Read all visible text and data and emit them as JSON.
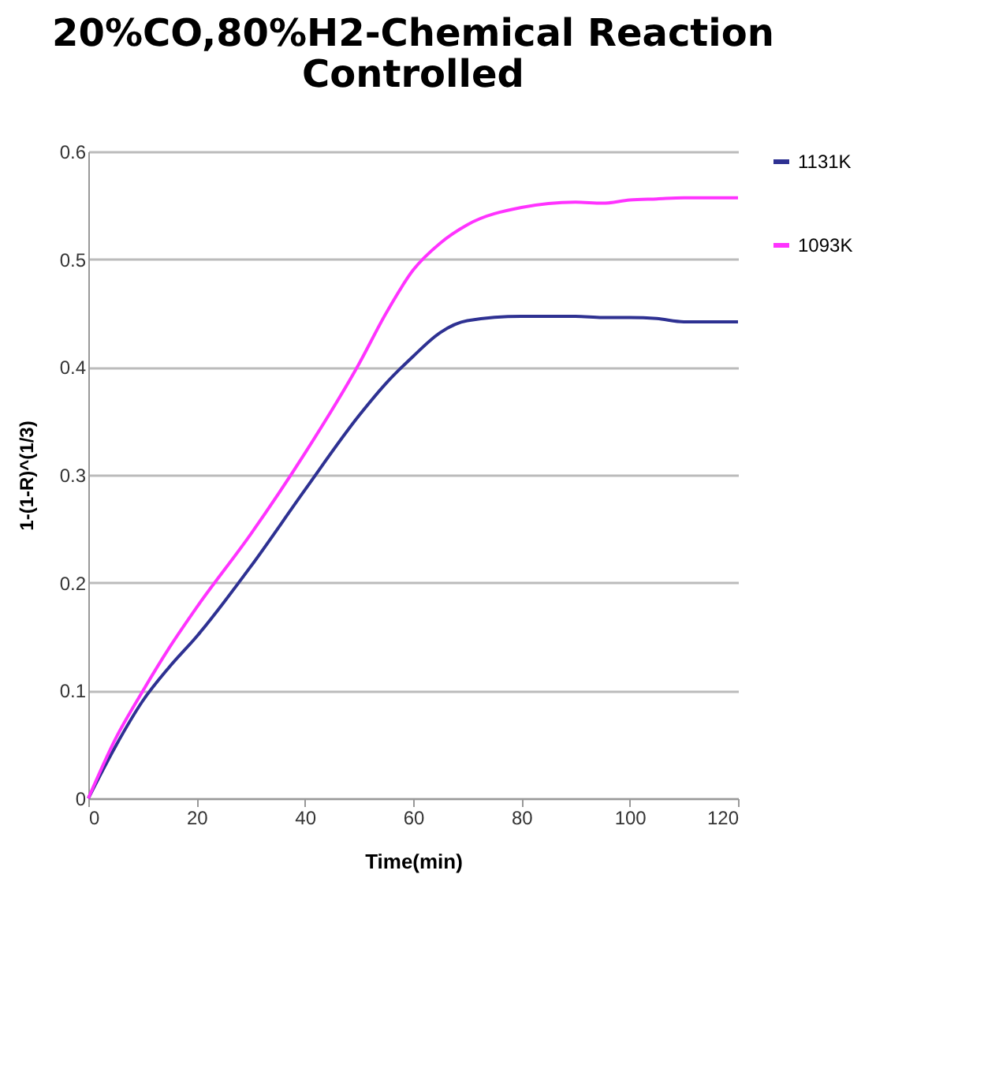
{
  "chart_data": {
    "type": "line",
    "title": [
      "20%CO,80%H2-Chemical Reaction",
      "Controlled"
    ],
    "xlabel": "Time(min)",
    "ylabel": "1-(1-R)^(1/3)",
    "x": [
      0,
      5,
      10,
      15,
      20,
      30,
      40,
      50,
      55,
      60,
      65,
      70,
      80,
      90,
      95,
      100,
      105,
      110,
      120
    ],
    "series": [
      {
        "name": "1131K",
        "color": "#2e3192",
        "values": [
          0,
          0.048,
          0.09,
          0.122,
          0.15,
          0.215,
          0.286,
          0.355,
          0.385,
          0.41,
          0.432,
          0.443,
          0.447,
          0.447,
          0.446,
          0.446,
          0.445,
          0.442,
          0.442
        ]
      },
      {
        "name": "1093K",
        "color": "#ff33ff",
        "values": [
          0,
          0.055,
          0.099,
          0.14,
          0.177,
          0.245,
          0.32,
          0.403,
          0.45,
          0.49,
          0.515,
          0.532,
          0.548,
          0.553,
          0.552,
          0.555,
          0.556,
          0.557,
          0.557
        ]
      }
    ],
    "xlim": [
      0,
      120
    ],
    "xticks": [
      0,
      20,
      40,
      60,
      80,
      100,
      120
    ],
    "ylim": [
      0,
      0.6
    ],
    "yticks": [
      0,
      0.1,
      0.2,
      0.3,
      0.4,
      0.5,
      0.6
    ],
    "grid": "y",
    "legend": "right",
    "marker": "none",
    "line_style": "solid"
  }
}
